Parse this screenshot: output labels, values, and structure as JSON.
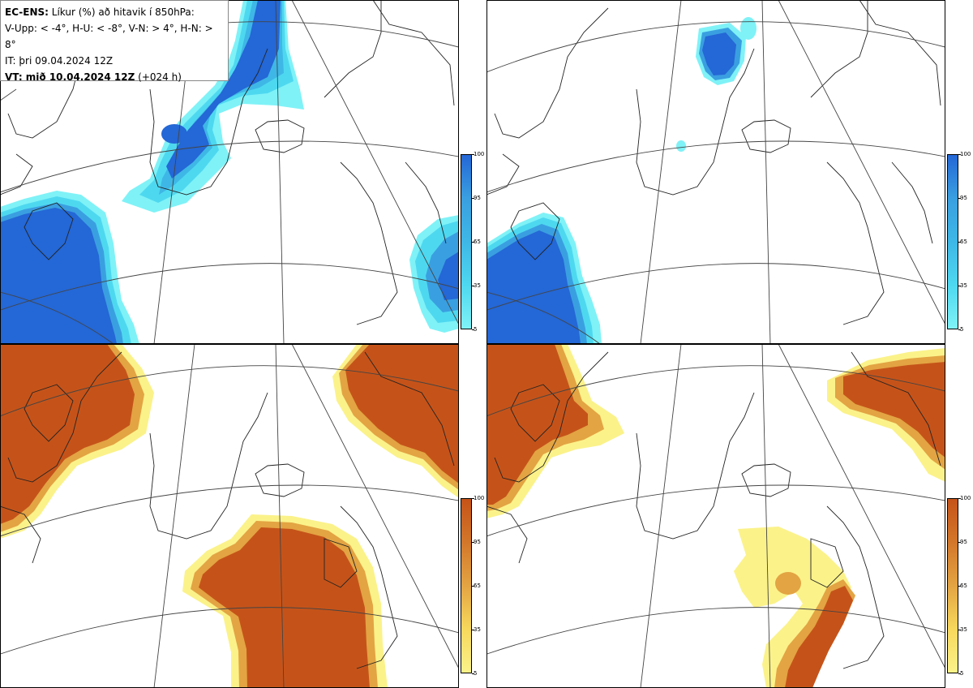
{
  "info": {
    "model": "EC-ENS:",
    "title": "Líkur (%) að hitavik í 850hPa:",
    "thresholds": "V-Upp: < -4°, H-U: < -8°, V-N: > 4°, H-N: > 8°",
    "init_time": "IT: þri 09.04.2024 12Z",
    "valid_prefix": "VT: mið 10.04.2024 12Z",
    "lead_time": "(+024 h)"
  },
  "colorbar_ticks": [
    "100",
    "95",
    "65",
    "35",
    "5"
  ],
  "colors": {
    "cold": [
      "#7ff2f7",
      "#4ed8f0",
      "#3eb7e6",
      "#3a9fe0",
      "#2467d6"
    ],
    "warm": [
      "#fbf28a",
      "#f7d85c",
      "#e3a443",
      "#d3772a",
      "#c55319"
    ],
    "coast": "#222222",
    "graticule": "#444444"
  },
  "panels": [
    {
      "name": "V-Upp",
      "kind": "cold"
    },
    {
      "name": "H-U",
      "kind": "cold"
    },
    {
      "name": "V-N",
      "kind": "warm"
    },
    {
      "name": "H-N",
      "kind": "warm"
    }
  ]
}
